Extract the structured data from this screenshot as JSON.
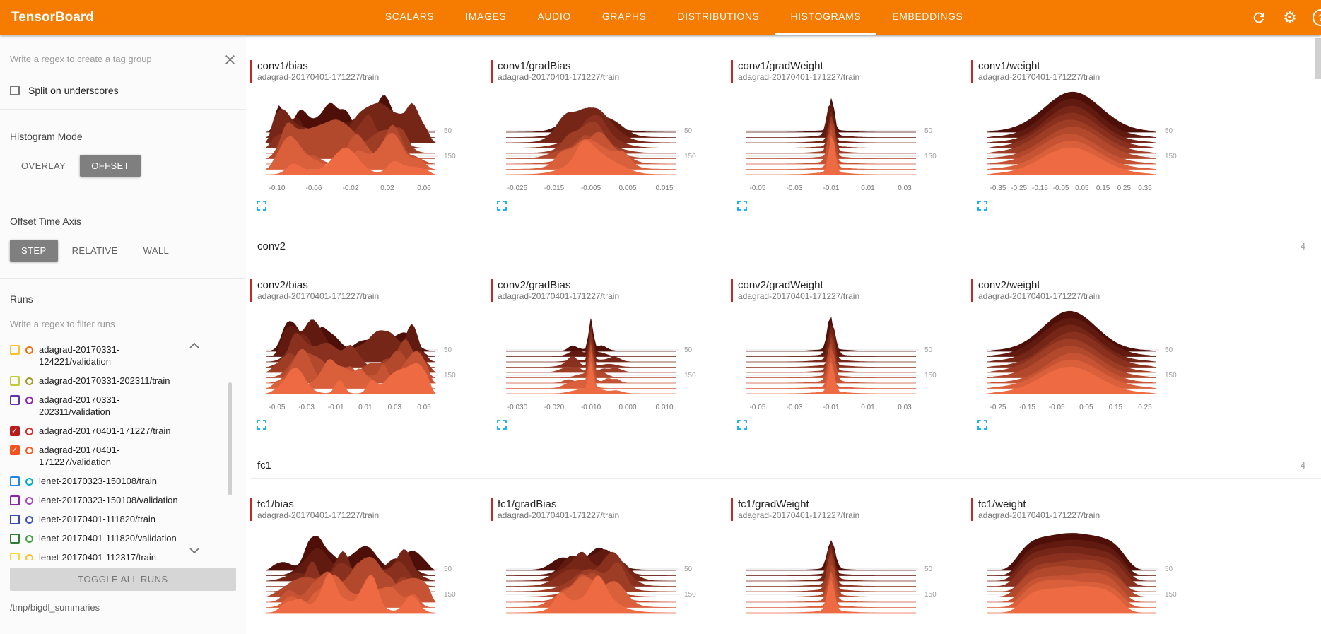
{
  "colors": {
    "header_bg": "#f57c00",
    "accent_bar": "#c62828",
    "expand_icon": "#03a9f4",
    "ridge_back": "#4d0f08",
    "ridge_front": "#ee6a42",
    "grid_line": "#e0e0e0",
    "tick_label": "#9e9e9e"
  },
  "header": {
    "title": "TensorBoard",
    "tabs": [
      "SCALARS",
      "IMAGES",
      "AUDIO",
      "GRAPHS",
      "DISTRIBUTIONS",
      "HISTOGRAMS",
      "EMBEDDINGS"
    ],
    "active_tab": "HISTOGRAMS",
    "help_glyph": "?"
  },
  "sidebar": {
    "tag_filter": {
      "placeholder": "Write a regex to create a tag group",
      "value": ""
    },
    "split_on_underscores": {
      "label": "Split on underscores",
      "checked": false
    },
    "histogram_mode": {
      "label": "Histogram Mode",
      "options": [
        "OVERLAY",
        "OFFSET"
      ],
      "selected": "OFFSET"
    },
    "offset_time_axis": {
      "label": "Offset Time Axis",
      "options": [
        "STEP",
        "RELATIVE",
        "WALL"
      ],
      "selected": "STEP"
    },
    "runs": {
      "label": "Runs",
      "filter_placeholder": "Write a regex to filter runs",
      "items": [
        {
          "name": "adagrad-20170331-124221/validation",
          "checkbox_color": "#fbc02d",
          "circle_color": "#ef6c00",
          "checked": false
        },
        {
          "name": "adagrad-20170331-202311/train",
          "checkbox_color": "#c0ca33",
          "circle_color": "#9e9d24",
          "checked": false
        },
        {
          "name": "adagrad-20170331-202311/validation",
          "checkbox_color": "#5e35b1",
          "circle_color": "#8e24aa",
          "checked": false
        },
        {
          "name": "adagrad-20170401-171227/train",
          "checkbox_color": "#b71c1c",
          "circle_color": "#d32f2f",
          "checked": true
        },
        {
          "name": "adagrad-20170401-171227/validation",
          "checkbox_color": "#f4511e",
          "circle_color": "#ff5722",
          "checked": true
        },
        {
          "name": "lenet-20170323-150108/train",
          "checkbox_color": "#1e88e5",
          "circle_color": "#00acc1",
          "checked": false
        },
        {
          "name": "lenet-20170323-150108/validation",
          "checkbox_color": "#8e24aa",
          "circle_color": "#ab47bc",
          "checked": false
        },
        {
          "name": "lenet-20170401-111820/train",
          "checkbox_color": "#3949ab",
          "circle_color": "#3f51b5",
          "checked": false
        },
        {
          "name": "lenet-20170401-111820/validation",
          "checkbox_color": "#2e7d32",
          "circle_color": "#43a047",
          "checked": false
        },
        {
          "name": "lenet-20170401-112317/train",
          "checkbox_color": "#fdd835",
          "circle_color": "#fbc02d",
          "checked": false
        }
      ],
      "toggle_all_label": "TOGGLE ALL RUNS",
      "log_dir": "/tmp/bigdl_summaries"
    }
  },
  "main": {
    "groups": [
      {
        "name": "",
        "count": "",
        "show_header": false,
        "chart_ids": [
          0,
          1,
          2,
          3
        ]
      },
      {
        "name": "conv2",
        "count": "4",
        "show_header": true,
        "chart_ids": [
          4,
          5,
          6,
          7
        ]
      },
      {
        "name": "fc1",
        "count": "4",
        "show_header": true,
        "chart_ids": [
          8,
          9,
          10,
          11
        ]
      }
    ]
  },
  "chart_data": [
    {
      "type": "histogram_offset_ridgeline",
      "title": "conv1/bias",
      "run": "adagrad-20170401-171227/train",
      "shape": "noisy",
      "seed": 7,
      "ridges": 9,
      "x_ticks": [
        "-0.10",
        "-0.06",
        "-0.02",
        "0.02",
        "0.06"
      ],
      "y_ticks": [
        "50",
        "150"
      ]
    },
    {
      "type": "histogram_offset_ridgeline",
      "title": "conv1/gradBias",
      "run": "adagrad-20170401-171227/train",
      "shape": "mound",
      "seed": 11,
      "ridges": 9,
      "x_ticks": [
        "-0.025",
        "-0.015",
        "-0.005",
        "0.005",
        "0.015"
      ],
      "y_ticks": [
        "50",
        "150"
      ]
    },
    {
      "type": "histogram_offset_ridgeline",
      "title": "conv1/gradWeight",
      "run": "adagrad-20170401-171227/train",
      "shape": "spike",
      "seed": 3,
      "ridges": 9,
      "x_ticks": [
        "-0.05",
        "-0.03",
        "-0.01",
        "0.01",
        "0.03"
      ],
      "y_ticks": [
        "50",
        "150"
      ]
    },
    {
      "type": "histogram_offset_ridgeline",
      "title": "conv1/weight",
      "run": "adagrad-20170401-171227/train",
      "shape": "bell",
      "seed": 5,
      "ridges": 9,
      "x_ticks": [
        "-0.35",
        "-0.25",
        "-0.15",
        "-0.05",
        "0.05",
        "0.15",
        "0.25",
        "0.35"
      ],
      "y_ticks": [
        "50",
        "150"
      ]
    },
    {
      "type": "histogram_offset_ridgeline",
      "title": "conv2/bias",
      "run": "adagrad-20170401-171227/train",
      "shape": "noisy",
      "seed": 13,
      "ridges": 9,
      "x_ticks": [
        "-0.05",
        "-0.03",
        "-0.01",
        "0.01",
        "0.03",
        "0.05"
      ],
      "y_ticks": [
        "50",
        "150"
      ]
    },
    {
      "type": "histogram_offset_ridgeline",
      "title": "conv2/gradBias",
      "run": "adagrad-20170401-171227/train",
      "shape": "spike_tails",
      "seed": 17,
      "ridges": 9,
      "x_ticks": [
        "-0.030",
        "-0.020",
        "-0.010",
        "0.000",
        "0.010"
      ],
      "y_ticks": [
        "50",
        "150"
      ]
    },
    {
      "type": "histogram_offset_ridgeline",
      "title": "conv2/gradWeight",
      "run": "adagrad-20170401-171227/train",
      "shape": "spike",
      "seed": 19,
      "ridges": 9,
      "x_ticks": [
        "-0.05",
        "-0.03",
        "-0.01",
        "0.01",
        "0.03"
      ],
      "y_ticks": [
        "50",
        "150"
      ]
    },
    {
      "type": "histogram_offset_ridgeline",
      "title": "conv2/weight",
      "run": "adagrad-20170401-171227/train",
      "shape": "bell",
      "seed": 23,
      "ridges": 9,
      "x_ticks": [
        "-0.25",
        "-0.15",
        "-0.05",
        "0.05",
        "0.15",
        "0.25"
      ],
      "y_ticks": [
        "50",
        "150"
      ]
    },
    {
      "type": "histogram_offset_ridgeline",
      "title": "fc1/bias",
      "run": "adagrad-20170401-171227/train",
      "shape": "noisy",
      "seed": 29,
      "ridges": 9,
      "x_ticks": [],
      "y_ticks": [
        "50",
        "150"
      ]
    },
    {
      "type": "histogram_offset_ridgeline",
      "title": "fc1/gradBias",
      "run": "adagrad-20170401-171227/train",
      "shape": "mound",
      "seed": 31,
      "ridges": 9,
      "x_ticks": [],
      "y_ticks": [
        "50",
        "150"
      ]
    },
    {
      "type": "histogram_offset_ridgeline",
      "title": "fc1/gradWeight",
      "run": "adagrad-20170401-171227/train",
      "shape": "spike",
      "seed": 37,
      "ridges": 9,
      "x_ticks": [],
      "y_ticks": [
        "50",
        "150"
      ]
    },
    {
      "type": "histogram_offset_ridgeline",
      "title": "fc1/weight",
      "run": "adagrad-20170401-171227/train",
      "shape": "plateau",
      "seed": 41,
      "ridges": 9,
      "x_ticks": [],
      "y_ticks": [
        "50",
        "150"
      ]
    }
  ]
}
